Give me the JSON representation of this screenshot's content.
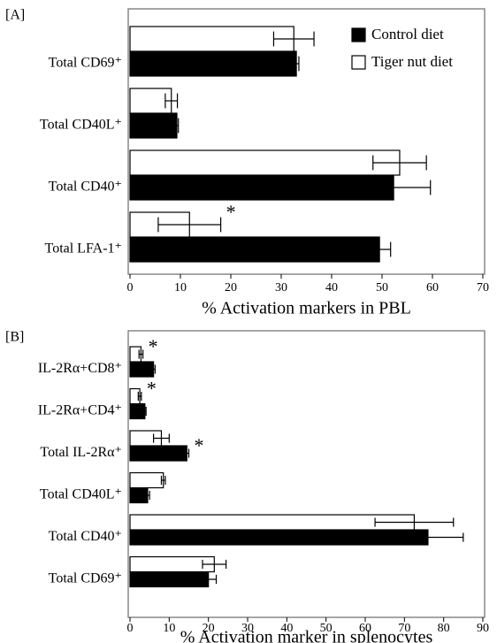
{
  "chart_data": [
    {
      "type": "bar",
      "orientation": "horizontal",
      "panel_label": "[A]",
      "xlabel": "% Activation markers in PBL",
      "categories": [
        "Total CD69⁺",
        "Total CD40L⁺",
        "Total CD40⁺",
        "Total LFA-1⁺"
      ],
      "series": [
        {
          "name": "Control diet",
          "color": "#000000",
          "values": [
            33,
            9.3,
            52.3,
            49.5
          ],
          "errors": [
            0.5,
            0.3,
            7.3,
            2.2
          ]
        },
        {
          "name": "Tiger nut diet",
          "color": "#ffffff",
          "values": [
            32.5,
            8.2,
            53.5,
            11.8
          ],
          "errors": [
            4,
            1.2,
            5.3,
            6.2
          ]
        }
      ],
      "annotations": [
        {
          "text": "*",
          "category": 3,
          "series": 1
        }
      ],
      "xlim": [
        0,
        70
      ],
      "xticks": [
        0,
        10,
        20,
        30,
        40,
        50,
        60,
        70
      ],
      "legend": "upper right"
    },
    {
      "type": "bar",
      "orientation": "horizontal",
      "panel_label": "[B]",
      "xlabel": "% Activation marker in splenocytes",
      "categories": [
        "IL-2Rα+CD8⁺",
        "IL-2Rα+CD4⁺",
        "Total IL-2Rα⁺",
        "Total CD40L⁺",
        "Total CD40⁺",
        "Total CD69⁺"
      ],
      "series": [
        {
          "color": "#000000",
          "values": [
            6,
            3.8,
            14.5,
            4.5,
            76,
            20
          ],
          "errors": [
            0.4,
            0.3,
            0.5,
            0.5,
            9,
            2
          ]
        },
        {
          "color": "#ffffff",
          "values": [
            2.8,
            2.5,
            8,
            8.5,
            72.5,
            21.5
          ],
          "errors": [
            0.5,
            0.4,
            2,
            0.5,
            10,
            3
          ]
        }
      ],
      "annotations": [
        {
          "text": "*",
          "category": 0,
          "series": 1
        },
        {
          "text": "*",
          "category": 1,
          "series": 1
        },
        {
          "text": "*",
          "category": 2,
          "series": 0
        }
      ],
      "xlim": [
        0,
        90
      ],
      "xticks": [
        0,
        10,
        20,
        30,
        40,
        50,
        60,
        70,
        80,
        90
      ]
    }
  ]
}
